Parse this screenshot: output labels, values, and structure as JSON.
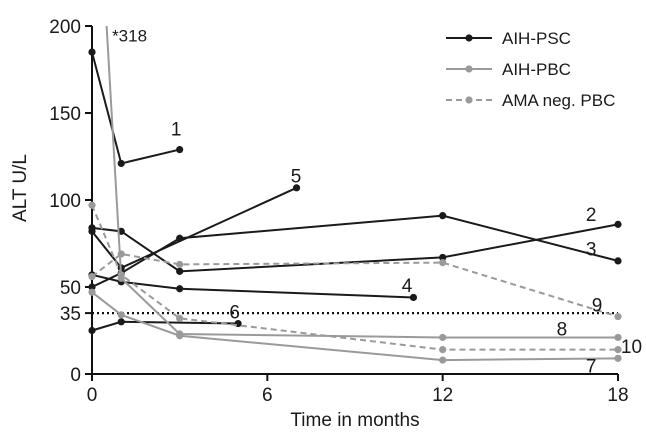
{
  "chart_data": {
    "type": "line",
    "title": "",
    "xlabel": "Time in months",
    "ylabel": "ALT U/L",
    "xlim": [
      0,
      18
    ],
    "ylim": [
      0,
      200
    ],
    "x_ticks": [
      0,
      6,
      12,
      18
    ],
    "y_ticks": [
      0,
      35,
      50,
      100,
      150,
      200
    ],
    "grid": false,
    "legend_position": "top-right",
    "reference_line": {
      "y": 35,
      "style": "dotted",
      "color": "#111111"
    },
    "annotation": {
      "text": "*318",
      "x": 0.55,
      "y": 198
    },
    "legend": [
      {
        "label": "AIH-PSC",
        "color": "#1a1a1a",
        "dash": "solid"
      },
      {
        "label": "AIH-PBC",
        "color": "#9a9a9a",
        "dash": "solid"
      },
      {
        "label": "AMA neg. PBC",
        "color": "#9a9a9a",
        "dash": "dashed"
      }
    ],
    "series": [
      {
        "name": "",
        "group": "AIH-PSC",
        "label": "1",
        "points": [
          [
            0,
            185
          ],
          [
            1,
            121
          ],
          [
            3,
            129
          ]
        ]
      },
      {
        "name": "",
        "group": "AIH-PSC",
        "label": "2",
        "points": [
          [
            0,
            84
          ],
          [
            1,
            82
          ],
          [
            3,
            59
          ],
          [
            12,
            67
          ],
          [
            18,
            86
          ]
        ]
      },
      {
        "name": "",
        "group": "AIH-PSC",
        "label": "3",
        "points": [
          [
            0,
            50
          ],
          [
            1,
            58
          ],
          [
            3,
            78
          ],
          [
            12,
            91
          ],
          [
            18,
            65
          ]
        ]
      },
      {
        "name": "",
        "group": "AIH-PSC",
        "label": "4",
        "points": [
          [
            0,
            57
          ],
          [
            1,
            53
          ],
          [
            3,
            49
          ],
          [
            11,
            44
          ]
        ]
      },
      {
        "name": "",
        "group": "AIH-PSC",
        "label": "5",
        "points": [
          [
            0,
            82
          ],
          [
            1,
            61
          ],
          [
            7,
            107
          ]
        ]
      },
      {
        "name": "",
        "group": "AIH-PSC",
        "label": "6",
        "points": [
          [
            0,
            25
          ],
          [
            1,
            30
          ],
          [
            5,
            29
          ]
        ]
      },
      {
        "name": "",
        "group": "AIH-PBC",
        "label": "7",
        "points": [
          [
            0,
            47
          ],
          [
            1,
            34
          ],
          [
            3,
            22
          ],
          [
            12,
            8
          ],
          [
            18,
            9
          ]
        ]
      },
      {
        "name": "",
        "group": "AIH-PBC",
        "label": "8",
        "points": [
          [
            0.5,
            200
          ],
          [
            1,
            55
          ],
          [
            3,
            23
          ],
          [
            12,
            21
          ],
          [
            18,
            21
          ]
        ]
      },
      {
        "name": "",
        "group": "AMA neg. PBC",
        "label": "9",
        "points": [
          [
            0,
            56
          ],
          [
            1,
            69
          ],
          [
            3,
            63
          ],
          [
            12,
            64
          ],
          [
            18,
            33
          ]
        ]
      },
      {
        "name": "",
        "group": "AMA neg. PBC",
        "label": "10",
        "points": [
          [
            0,
            97
          ],
          [
            1,
            57
          ],
          [
            3,
            32
          ],
          [
            12,
            14
          ],
          [
            18,
            14
          ]
        ]
      }
    ]
  }
}
